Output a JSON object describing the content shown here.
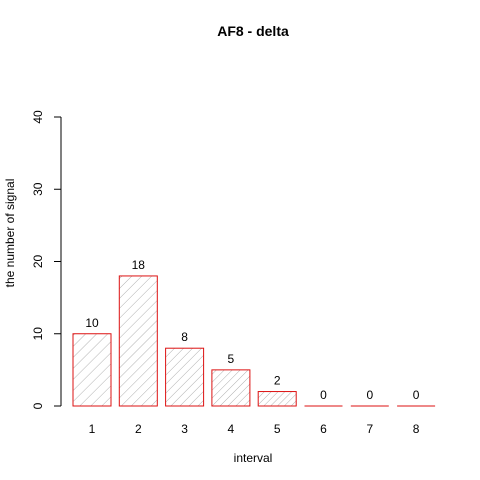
{
  "chart_data": {
    "type": "bar",
    "title": "AF8  -  delta",
    "xlabel": "interval",
    "ylabel": "the number of signal",
    "categories": [
      "1",
      "2",
      "3",
      "4",
      "5",
      "6",
      "7",
      "8"
    ],
    "values": [
      10,
      18,
      8,
      5,
      2,
      0,
      0,
      0
    ],
    "ylim": [
      0,
      40
    ],
    "yticks": [
      0,
      10,
      20,
      30,
      40
    ],
    "grid": false,
    "legend": "none",
    "colors": {
      "bar_border": "#dd1111",
      "hatch": "#909090",
      "axis": "#000000"
    },
    "hatch_densities": [
      0.2,
      0.27,
      0.33,
      0.4,
      0.47,
      0.53,
      0.6,
      0.67
    ]
  }
}
